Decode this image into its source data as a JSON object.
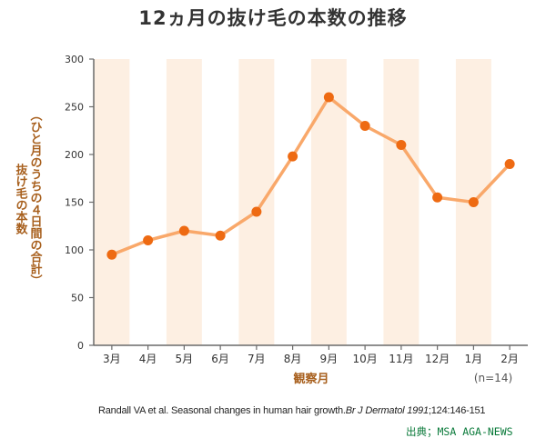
{
  "chart_data": {
    "type": "line",
    "title": "12ヵ月の抜け毛の本数の推移",
    "ylabel_main": "抜け毛の本数",
    "ylabel_sub": "（ひと月のうちの４日間の合計）",
    "xlabel": "観察月",
    "note": "(n=14)",
    "categories": [
      "3月",
      "4月",
      "5月",
      "6月",
      "7月",
      "8月",
      "9月",
      "10月",
      "11月",
      "12月",
      "1月",
      "2月"
    ],
    "values": [
      95,
      110,
      120,
      115,
      140,
      198,
      260,
      230,
      210,
      155,
      150,
      190
    ],
    "ylim": [
      0,
      300
    ],
    "yticks": [
      "0",
      "50",
      "100",
      "150",
      "200",
      "250",
      "300"
    ],
    "grid": false,
    "striped_background": true,
    "colors": {
      "line": "#f9a86a",
      "marker": "#ee6a12",
      "stripe": "#fdefe2",
      "label": "#a8601e",
      "axis": "#6a6a6a"
    }
  },
  "citation": {
    "prefix": "Randall VA et al. Seasonal changes in human hair growth.",
    "journal": "Br J Dermatol 1991",
    "suffix": ";124:146-151"
  },
  "source": "出典；MSA AGA-NEWS"
}
